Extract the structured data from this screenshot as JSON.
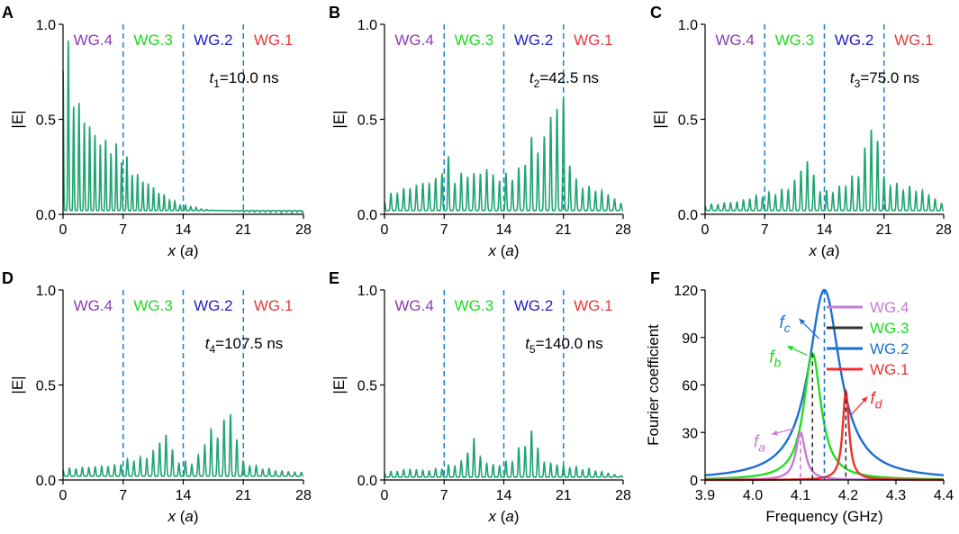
{
  "colors": {
    "field": "#20a472",
    "divider": "#1f7fd0",
    "wg4": "#8b3bb5",
    "wg3": "#20d820",
    "wg2": "#2020c8",
    "wg1": "#e83838",
    "spec_wg4": "#c87ad8",
    "spec_wg3": "#22dd22",
    "spec_wg2": "#1c6fd1",
    "spec_wg1": "#ef3030",
    "axis": "#000000",
    "dashed_dark": "#333333"
  },
  "chart_data": [
    {
      "type": "line",
      "letter": "A",
      "ylabel": "|E|",
      "xlabel_var": "x",
      "xlabel_unit": "a",
      "xlim": [
        0,
        28
      ],
      "ylim": [
        0,
        1.0
      ],
      "xticks": [
        "0",
        "7",
        "14",
        "21",
        "28"
      ],
      "yticks": [
        "0.0",
        "0.5",
        "1.0"
      ],
      "regions": [
        "WG.4",
        "WG.3",
        "WG.2",
        "WG.1"
      ],
      "dividers_x": [
        7,
        14,
        21
      ],
      "time_var": "t",
      "time_sub": "1",
      "time_value": "=10.0 ns",
      "series": [
        {
          "name": "|E|",
          "envelope": [
            [
              0,
              1.0
            ],
            [
              0.5,
              0.98
            ],
            [
              1,
              0.72
            ],
            [
              2,
              0.58
            ],
            [
              3,
              0.5
            ],
            [
              4,
              0.42
            ],
            [
              5,
              0.4
            ],
            [
              6,
              0.38
            ],
            [
              7,
              0.35
            ],
            [
              8,
              0.25
            ],
            [
              9,
              0.2
            ],
            [
              10,
              0.17
            ],
            [
              11,
              0.13
            ],
            [
              12,
              0.1
            ],
            [
              13,
              0.07
            ],
            [
              14,
              0.05
            ],
            [
              15,
              0.045
            ],
            [
              16,
              0.03
            ],
            [
              18,
              0.02
            ],
            [
              21,
              0.012
            ],
            [
              24,
              0.01
            ],
            [
              28,
              0.008
            ]
          ],
          "peak_spacing": 0.62,
          "baseline": 0.02
        }
      ]
    },
    {
      "type": "line",
      "letter": "B",
      "ylabel": "|E|",
      "xlabel_var": "x",
      "xlabel_unit": "a",
      "xlim": [
        0,
        28
      ],
      "ylim": [
        0,
        1.0
      ],
      "xticks": [
        "0",
        "7",
        "14",
        "21",
        "28"
      ],
      "yticks": [
        "0.0",
        "0.5",
        "1.0"
      ],
      "regions": [
        "WG.4",
        "WG.3",
        "WG.2",
        "WG.1"
      ],
      "dividers_x": [
        7,
        14,
        21
      ],
      "time_var": "t",
      "time_sub": "2",
      "time_value": "=42.5 ns",
      "series": [
        {
          "name": "|E|",
          "envelope": [
            [
              0,
              0.08
            ],
            [
              1,
              0.12
            ],
            [
              3,
              0.15
            ],
            [
              5,
              0.18
            ],
            [
              6.5,
              0.2
            ],
            [
              7.2,
              0.37
            ],
            [
              8,
              0.2
            ],
            [
              9,
              0.22
            ],
            [
              10,
              0.23
            ],
            [
              11,
              0.22
            ],
            [
              12,
              0.26
            ],
            [
              13,
              0.2
            ],
            [
              14.5,
              0.22
            ],
            [
              16,
              0.25
            ],
            [
              17.3,
              0.42
            ],
            [
              18.2,
              0.35
            ],
            [
              19.3,
              0.52
            ],
            [
              20.2,
              0.63
            ],
            [
              21,
              0.63
            ],
            [
              22,
              0.2
            ],
            [
              24,
              0.15
            ],
            [
              26,
              0.12
            ],
            [
              28,
              0.05
            ]
          ],
          "peak_spacing": 0.75,
          "baseline": 0.02
        }
      ]
    },
    {
      "type": "line",
      "letter": "C",
      "ylabel": "|E|",
      "xlabel_var": "x",
      "xlabel_unit": "a",
      "xlim": [
        0,
        28
      ],
      "ylim": [
        0,
        1.0
      ],
      "xticks": [
        "0",
        "7",
        "14",
        "21",
        "28"
      ],
      "yticks": [
        "0.0",
        "0.5",
        "1.0"
      ],
      "regions": [
        "WG.4",
        "WG.3",
        "WG.2",
        "WG.1"
      ],
      "dividers_x": [
        7,
        14,
        21
      ],
      "time_var": "t",
      "time_sub": "3",
      "time_value": "=75.0 ns",
      "series": [
        {
          "name": "|E|",
          "envelope": [
            [
              0,
              0.05
            ],
            [
              2,
              0.06
            ],
            [
              4,
              0.07
            ],
            [
              6,
              0.1
            ],
            [
              8,
              0.12
            ],
            [
              10,
              0.15
            ],
            [
              12.3,
              0.33
            ],
            [
              13,
              0.15
            ],
            [
              14,
              0.12
            ],
            [
              15,
              0.14
            ],
            [
              16,
              0.15
            ],
            [
              17,
              0.2
            ],
            [
              18,
              0.22
            ],
            [
              19.3,
              0.48
            ],
            [
              20.2,
              0.45
            ],
            [
              21,
              0.2
            ],
            [
              22,
              0.17
            ],
            [
              24,
              0.15
            ],
            [
              26,
              0.12
            ],
            [
              28,
              0.05
            ]
          ],
          "peak_spacing": 0.75,
          "baseline": 0.02
        }
      ]
    },
    {
      "type": "line",
      "letter": "D",
      "ylabel": "|E|",
      "xlabel_var": "x",
      "xlabel_unit": "a",
      "xlim": [
        0,
        28
      ],
      "ylim": [
        0,
        1.0
      ],
      "xticks": [
        "0",
        "7",
        "14",
        "21",
        "28"
      ],
      "yticks": [
        "0.0",
        "0.5",
        "1.0"
      ],
      "regions": [
        "WG.4",
        "WG.3",
        "WG.2",
        "WG.1"
      ],
      "dividers_x": [
        7,
        14,
        21
      ],
      "time_var": "t",
      "time_sub": "4",
      "time_value": "=107.5 ns",
      "series": [
        {
          "name": "|E|",
          "envelope": [
            [
              0,
              0.06
            ],
            [
              3,
              0.07
            ],
            [
              6,
              0.08
            ],
            [
              7,
              0.1
            ],
            [
              8,
              0.12
            ],
            [
              9,
              0.12
            ],
            [
              10,
              0.13
            ],
            [
              12.3,
              0.28
            ],
            [
              13,
              0.1
            ],
            [
              14,
              0.1
            ],
            [
              15.5,
              0.1
            ],
            [
              17,
              0.28
            ],
            [
              18,
              0.25
            ],
            [
              19.3,
              0.4
            ],
            [
              20.3,
              0.23
            ],
            [
              21,
              0.1
            ],
            [
              22,
              0.08
            ],
            [
              25,
              0.05
            ],
            [
              28,
              0.04
            ]
          ],
          "peak_spacing": 0.75,
          "baseline": 0.02
        }
      ]
    },
    {
      "type": "line",
      "letter": "E",
      "ylabel": "|E|",
      "xlabel_var": "x",
      "xlabel_unit": "a",
      "xlim": [
        0,
        28
      ],
      "ylim": [
        0,
        1.0
      ],
      "xticks": [
        "0",
        "7",
        "14",
        "21",
        "28"
      ],
      "yticks": [
        "0.0",
        "0.5",
        "1.0"
      ],
      "regions": [
        "WG.4",
        "WG.3",
        "WG.2",
        "WG.1"
      ],
      "dividers_x": [
        7,
        14,
        21
      ],
      "time_var": "t",
      "time_sub": "5",
      "time_value": "=140.0 ns",
      "series": [
        {
          "name": "|E|",
          "envelope": [
            [
              0,
              0.04
            ],
            [
              3,
              0.06
            ],
            [
              5,
              0.05
            ],
            [
              7,
              0.07
            ],
            [
              9,
              0.1
            ],
            [
              10.5,
              0.23
            ],
            [
              11.5,
              0.1
            ],
            [
              13,
              0.08
            ],
            [
              14,
              0.09
            ],
            [
              15,
              0.12
            ],
            [
              17.5,
              0.28
            ],
            [
              18.5,
              0.1
            ],
            [
              21,
              0.08
            ],
            [
              24,
              0.06
            ],
            [
              27,
              0.03
            ],
            [
              28,
              0.02
            ]
          ],
          "peak_spacing": 0.75,
          "baseline": 0.015
        }
      ]
    },
    {
      "type": "line",
      "letter": "F",
      "xlabel": "Frequency (GHz)",
      "ylabel": "Fourier coefficient",
      "xlim": [
        3.9,
        4.4
      ],
      "ylim": [
        0,
        120
      ],
      "xticks": [
        "3.9",
        "4.0",
        "4.1",
        "4.2",
        "4.3",
        "4.4"
      ],
      "yticks": [
        "0",
        "30",
        "60",
        "90",
        "120"
      ],
      "series": [
        {
          "name": "WG.4",
          "peak_freq": 4.1,
          "peak_value": 30,
          "width": 0.012
        },
        {
          "name": "WG.3",
          "peak_freq": 4.125,
          "peak_value": 80,
          "width": 0.022
        },
        {
          "name": "WG.2",
          "peak_freq": 4.15,
          "peak_value": 120,
          "width": 0.04
        },
        {
          "name": "WG.1",
          "peak_freq": 4.195,
          "peak_value": 56,
          "width": 0.008
        }
      ],
      "legend_line3_color_note": "WG.3 legend sample drawn dark",
      "annotations": [
        {
          "var": "f",
          "sub": "a",
          "freq": 4.1
        },
        {
          "var": "f",
          "sub": "b",
          "freq": 4.125
        },
        {
          "var": "f",
          "sub": "c",
          "freq": 4.15
        },
        {
          "var": "f",
          "sub": "d",
          "freq": 4.195
        }
      ]
    }
  ]
}
